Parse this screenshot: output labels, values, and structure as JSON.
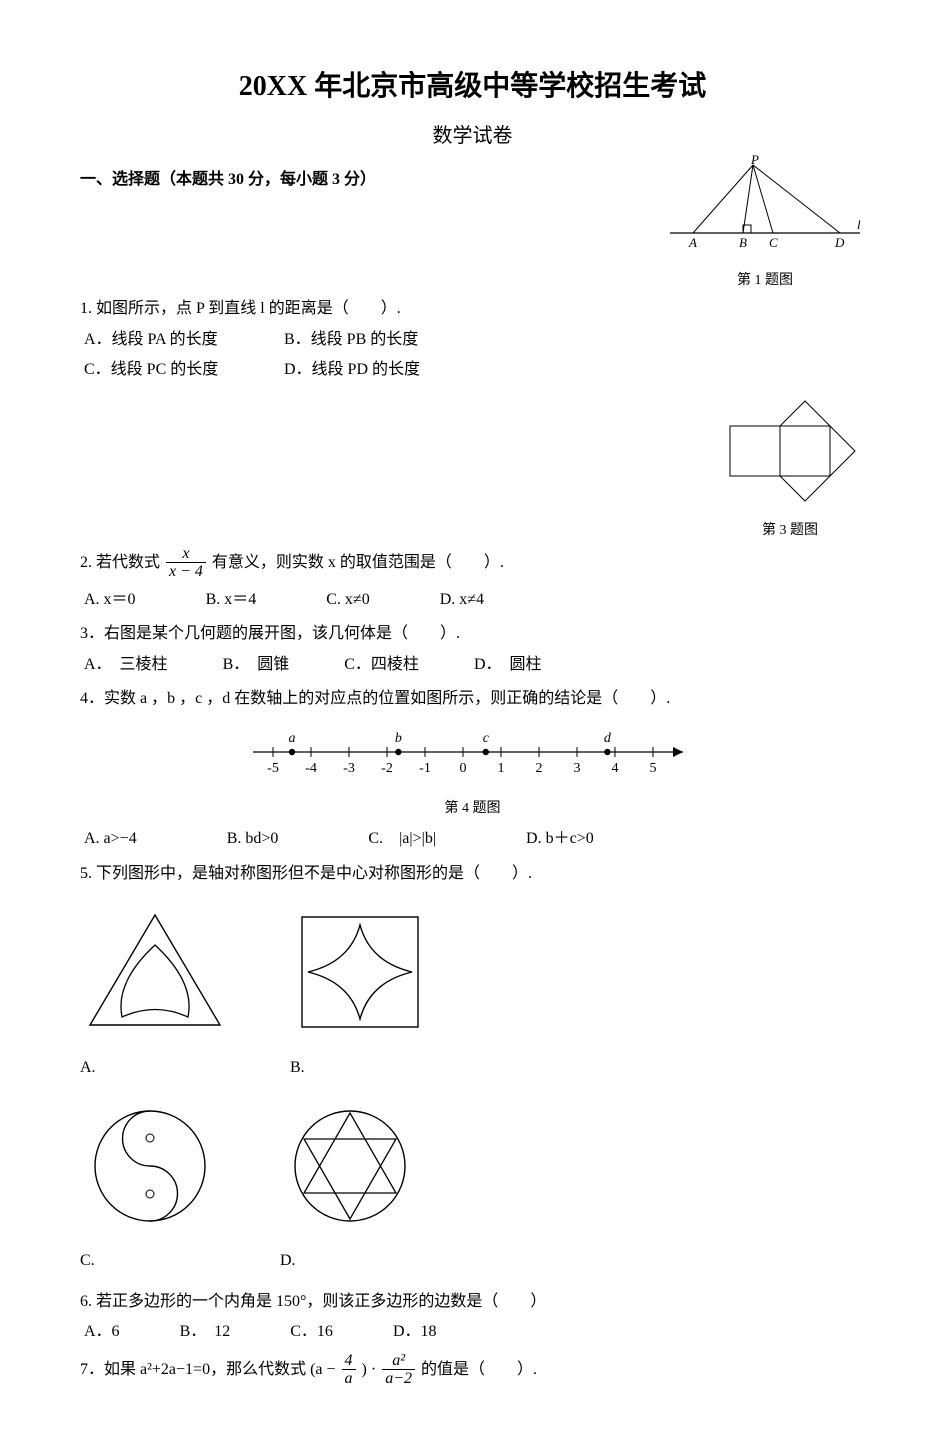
{
  "title": "20XX 年北京市高级中等学校招生考试",
  "subtitle": "数学试卷",
  "section1": "一、选择题（本题共 30 分，每小题 3 分）",
  "q1": {
    "text": "1. 如图所示，点 P 到直线 l 的距离是（　　）.",
    "A": "A．线段 PA 的长度",
    "B": "B．线段 PB 的长度",
    "C": "C．线段 PC 的长度",
    "D": "D．线段 PD 的长度",
    "cap": "第 1 题图"
  },
  "q2": {
    "pre": "2. 若代数式",
    "num": "x",
    "den": "x − 4",
    "post": "有意义，则实数 x 的取值范围是（　　）.",
    "A": "A. x＝0",
    "B": "B. x＝4",
    "C": "C. x≠0",
    "D": "D. x≠4"
  },
  "q3": {
    "text": "3．右图是某个几何题的展开图，该几何体是（　　）.",
    "A": "A．　三棱柱",
    "B": "B．　圆锥",
    "C": "C．四棱柱",
    "D": "D．　圆柱",
    "cap": "第 3 题图"
  },
  "q4": {
    "text": "4．实数 a ，b ，c ，d 在数轴上的对应点的位置如图所示，则正确的结论是（　　）.",
    "cap": "第 4 题图",
    "A": "A. a>−4",
    "B": "B. bd>0",
    "C": "C.　|a|>|b|",
    "D": "D. b＋c>0",
    "ticks": [
      "-5",
      "-4",
      "-3",
      "-2",
      "-1",
      "0",
      "1",
      "2",
      "3",
      "4",
      "5"
    ],
    "labels": {
      "a": "a",
      "b": "b",
      "c": "c",
      "d": "d"
    }
  },
  "q5": {
    "text": "5. 下列图形中，是轴对称图形但不是中心对称图形的是（　　）.",
    "A": "A.",
    "B": "B.",
    "C": "C.",
    "D": "D."
  },
  "q6": {
    "text": "6. 若正多边形的一个内角是 150°，则该正多边形的边数是（　　）",
    "A": "A．6",
    "B": "B．　12",
    "C": "C．16",
    "D": "D．18"
  },
  "q7": {
    "pre": "7．如果 a²+2a−1=0，那么代数式 (a −",
    "f1num": "4",
    "f1den": "a",
    "mid": ") · ",
    "f2num": "a²",
    "f2den": "a−2",
    "post": "的值是（　　）."
  }
}
